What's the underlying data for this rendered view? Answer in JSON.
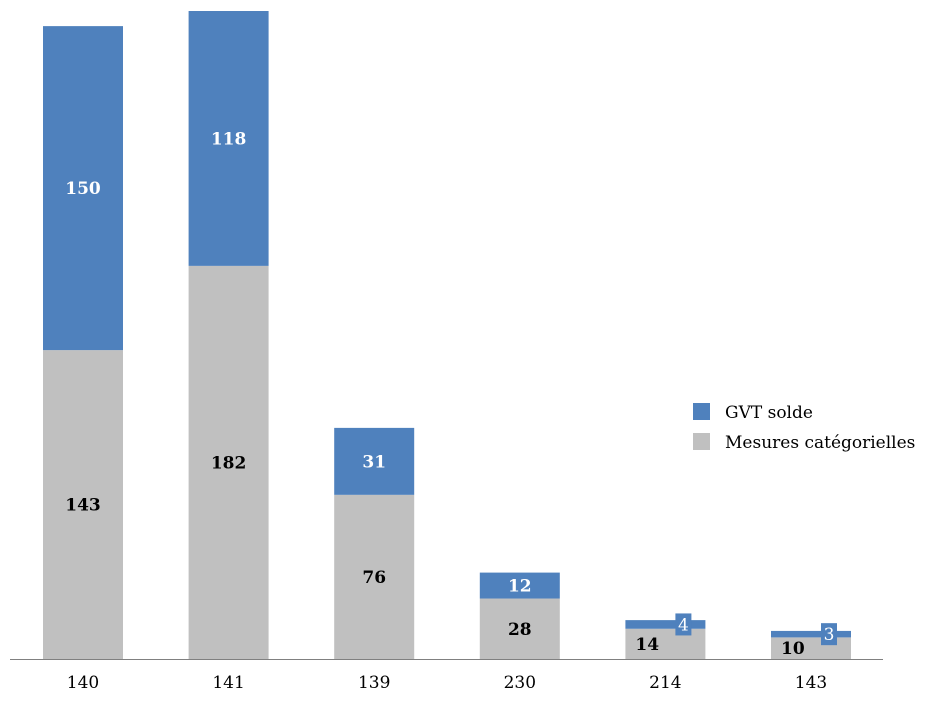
{
  "colors": {
    "gvt": "#4F81BD",
    "mesures": "#C0C0C0",
    "axis": "#808080"
  },
  "legend": {
    "gvt_label": "GVT solde",
    "mesures_label": "Mesures catégorielles",
    "position": "right"
  },
  "chart_data": {
    "type": "bar",
    "stacked": true,
    "categories": [
      "140",
      "141",
      "139",
      "230",
      "214",
      "143"
    ],
    "series": [
      {
        "name": "Mesures catégorielles",
        "values": [
          143,
          182,
          76,
          28,
          14,
          10
        ]
      },
      {
        "name": "GVT solde",
        "values": [
          150,
          118,
          31,
          12,
          4,
          3
        ]
      }
    ],
    "title": "",
    "xlabel": "",
    "ylabel": "",
    "ylim": [
      0,
      300
    ],
    "grid": false
  }
}
